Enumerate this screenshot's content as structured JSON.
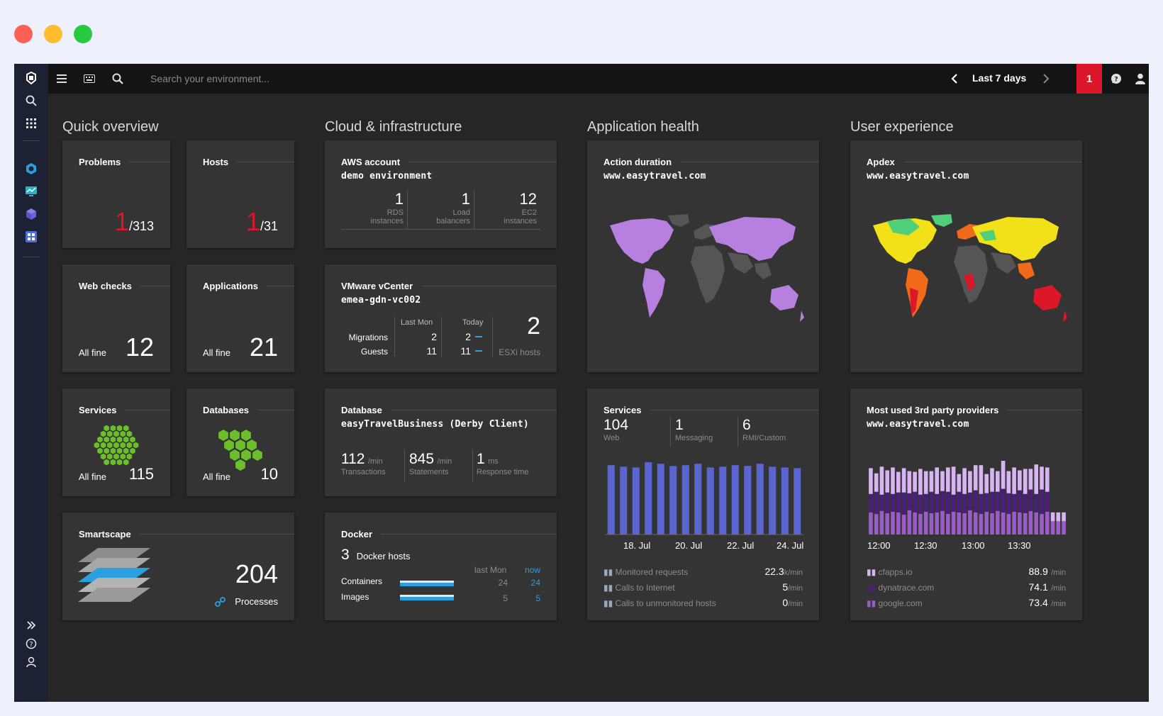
{
  "window": {
    "close_color": "#fe5f57",
    "minimize_color": "#febc2e",
    "maximize_color": "#28c840"
  },
  "topbar": {
    "search_placeholder": "Search your environment...",
    "timeframe": "Last 7 days",
    "problem_count": "1",
    "icons": [
      "menu-icon",
      "keyboard-icon",
      "search-icon",
      "chevron-left-icon",
      "chevron-right-icon",
      "chat-icon",
      "user-icon"
    ]
  },
  "sidebar": {
    "icons": [
      "logo-icon",
      "search-icon",
      "apps-grid-icon",
      "cloud-app-icon",
      "monitor-icon",
      "cube-icon",
      "dashboard-icon",
      "expand-icon",
      "help-icon",
      "user-icon"
    ]
  },
  "sections": {
    "quick_overview": "Quick overview",
    "cloud": "Cloud & infrastructure",
    "app_health": "Application health",
    "user_exp": "User experience"
  },
  "tiles": {
    "problems": {
      "title": "Problems",
      "value": "1",
      "total": "/313"
    },
    "hosts": {
      "title": "Hosts",
      "value": "1",
      "total": "/31"
    },
    "web_checks": {
      "title": "Web checks",
      "status": "All fine",
      "value": "12"
    },
    "applications": {
      "title": "Applications",
      "status": "All fine",
      "value": "21"
    },
    "services": {
      "title": "Services",
      "status": "All fine",
      "value": "115"
    },
    "databases": {
      "title": "Databases",
      "status": "All fine",
      "value": "10"
    },
    "smartscape": {
      "title": "Smartscape",
      "value": "204",
      "label": "Processes"
    },
    "aws": {
      "title": "AWS account",
      "subtitle": "demo environment",
      "metrics": [
        {
          "value": "1",
          "line1": "RDS",
          "line2": "instances"
        },
        {
          "value": "1",
          "line1": "Load",
          "line2": "balancers"
        },
        {
          "value": "12",
          "line1": "EC2",
          "line2": "instances"
        }
      ]
    },
    "vmware": {
      "title": "VMware vCenter",
      "subtitle": "emea-gdn-vc002",
      "col_last_mon": "Last Mon",
      "col_today": "Today",
      "row_migrations": "Migrations",
      "row_guests": "Guests",
      "migrations_last": "2",
      "migrations_today": "2",
      "guests_last": "11",
      "guests_today": "11",
      "esxi_value": "2",
      "esxi_label": "ESXi hosts"
    },
    "database": {
      "title": "Database",
      "subtitle": "easyTravelBusiness (Derby Client)",
      "metrics": [
        {
          "value": "112",
          "unit": "/min",
          "label": "Transactions"
        },
        {
          "value": "845",
          "unit": "/min",
          "label": "Statements"
        },
        {
          "value": "1",
          "unit": "ms",
          "label": "Response time"
        }
      ]
    },
    "docker": {
      "title": "Docker",
      "hosts_value": "3",
      "hosts_label": "Docker hosts",
      "col_last_mon": "last Mon",
      "col_now": "now",
      "rows": [
        {
          "label": "Containers",
          "last": "24",
          "now": "24"
        },
        {
          "label": "Images",
          "last": "5",
          "now": "5"
        }
      ]
    },
    "action_duration": {
      "title": "Action duration",
      "subtitle": "www.easytravel.com"
    },
    "apdex": {
      "title": "Apdex",
      "subtitle": "www.easytravel.com"
    },
    "app_services": {
      "title": "Services",
      "counts": [
        {
          "value": "104",
          "label": "Web"
        },
        {
          "value": "1",
          "label": "Messaging"
        },
        {
          "value": "6",
          "label": "RMI/Custom"
        }
      ],
      "x_labels": [
        "18. Jul",
        "20. Jul",
        "22. Jul",
        "24. Jul"
      ],
      "metrics": [
        {
          "label": "Monitored requests",
          "value": "22.3",
          "unit": "k/min"
        },
        {
          "label": "Calls to Internet",
          "value": "5",
          "unit": "/min"
        },
        {
          "label": "Calls to unmonitored hosts",
          "value": "0",
          "unit": "/min"
        }
      ]
    },
    "third_party": {
      "title": "Most used 3rd party providers",
      "subtitle": "www.easytravel.com",
      "x_labels": [
        "12:00",
        "12:30",
        "13:00",
        "13:30"
      ],
      "providers": [
        {
          "label": "cfapps.io",
          "value": "88.9",
          "unit": "/min"
        },
        {
          "label": "dynatrace.com",
          "value": "74.1",
          "unit": "/min"
        },
        {
          "label": "google.com",
          "value": "73.4",
          "unit": "/min"
        }
      ]
    }
  },
  "chart_data": [
    {
      "type": "bar",
      "categories": [
        "",
        "",
        "",
        "",
        "",
        "",
        "",
        "",
        "",
        "",
        "",
        "",
        "",
        "",
        "",
        ""
      ],
      "series": [
        {
          "values": [
            94,
            92,
            91,
            98,
            96,
            93,
            94,
            96,
            91,
            92,
            94,
            93,
            96,
            92,
            91,
            90
          ]
        }
      ],
      "ylim": [
        0,
        100
      ],
      "xlabel": "",
      "ylabel": "",
      "color": "#5b65d0"
    },
    {
      "type": "bar",
      "stacked": true,
      "categories": [
        "",
        "",
        "",
        "",
        "",
        "",
        "",
        "",
        "",
        "",
        "",
        "",
        "",
        "",
        "",
        "",
        "",
        "",
        "",
        "",
        "",
        "",
        "",
        "",
        "",
        "",
        "",
        "",
        "",
        "",
        "",
        "",
        "",
        "",
        "",
        ""
      ],
      "series": [
        {
          "values": [
            30,
            28,
            32,
            29,
            31,
            30,
            27,
            33,
            30,
            28,
            31,
            29,
            30,
            32,
            28,
            31,
            30,
            29,
            33,
            30,
            28,
            31,
            29,
            32,
            30,
            28,
            31,
            30,
            29,
            32,
            30,
            28,
            31,
            18,
            18,
            18
          ]
        },
        {
          "values": [
            25,
            30,
            22,
            28,
            24,
            27,
            30,
            23,
            28,
            26,
            24,
            29,
            25,
            27,
            30,
            23,
            28,
            26,
            24,
            30,
            27,
            25,
            29,
            26,
            32,
            28,
            24,
            30,
            26,
            29,
            25,
            33,
            27,
            0,
            0,
            0
          ]
        },
        {
          "values": [
            35,
            25,
            38,
            30,
            36,
            28,
            33,
            30,
            27,
            35,
            31,
            28,
            36,
            27,
            33,
            38,
            24,
            35,
            29,
            34,
            39,
            26,
            32,
            28,
            38,
            30,
            36,
            27,
            34,
            28,
            40,
            31,
            33,
            12,
            12,
            12
          ]
        }
      ],
      "ylim": [
        0,
        100
      ],
      "colors": [
        "#9a5cc6",
        "#4a1e7a",
        "#d8b4f2"
      ]
    }
  ]
}
